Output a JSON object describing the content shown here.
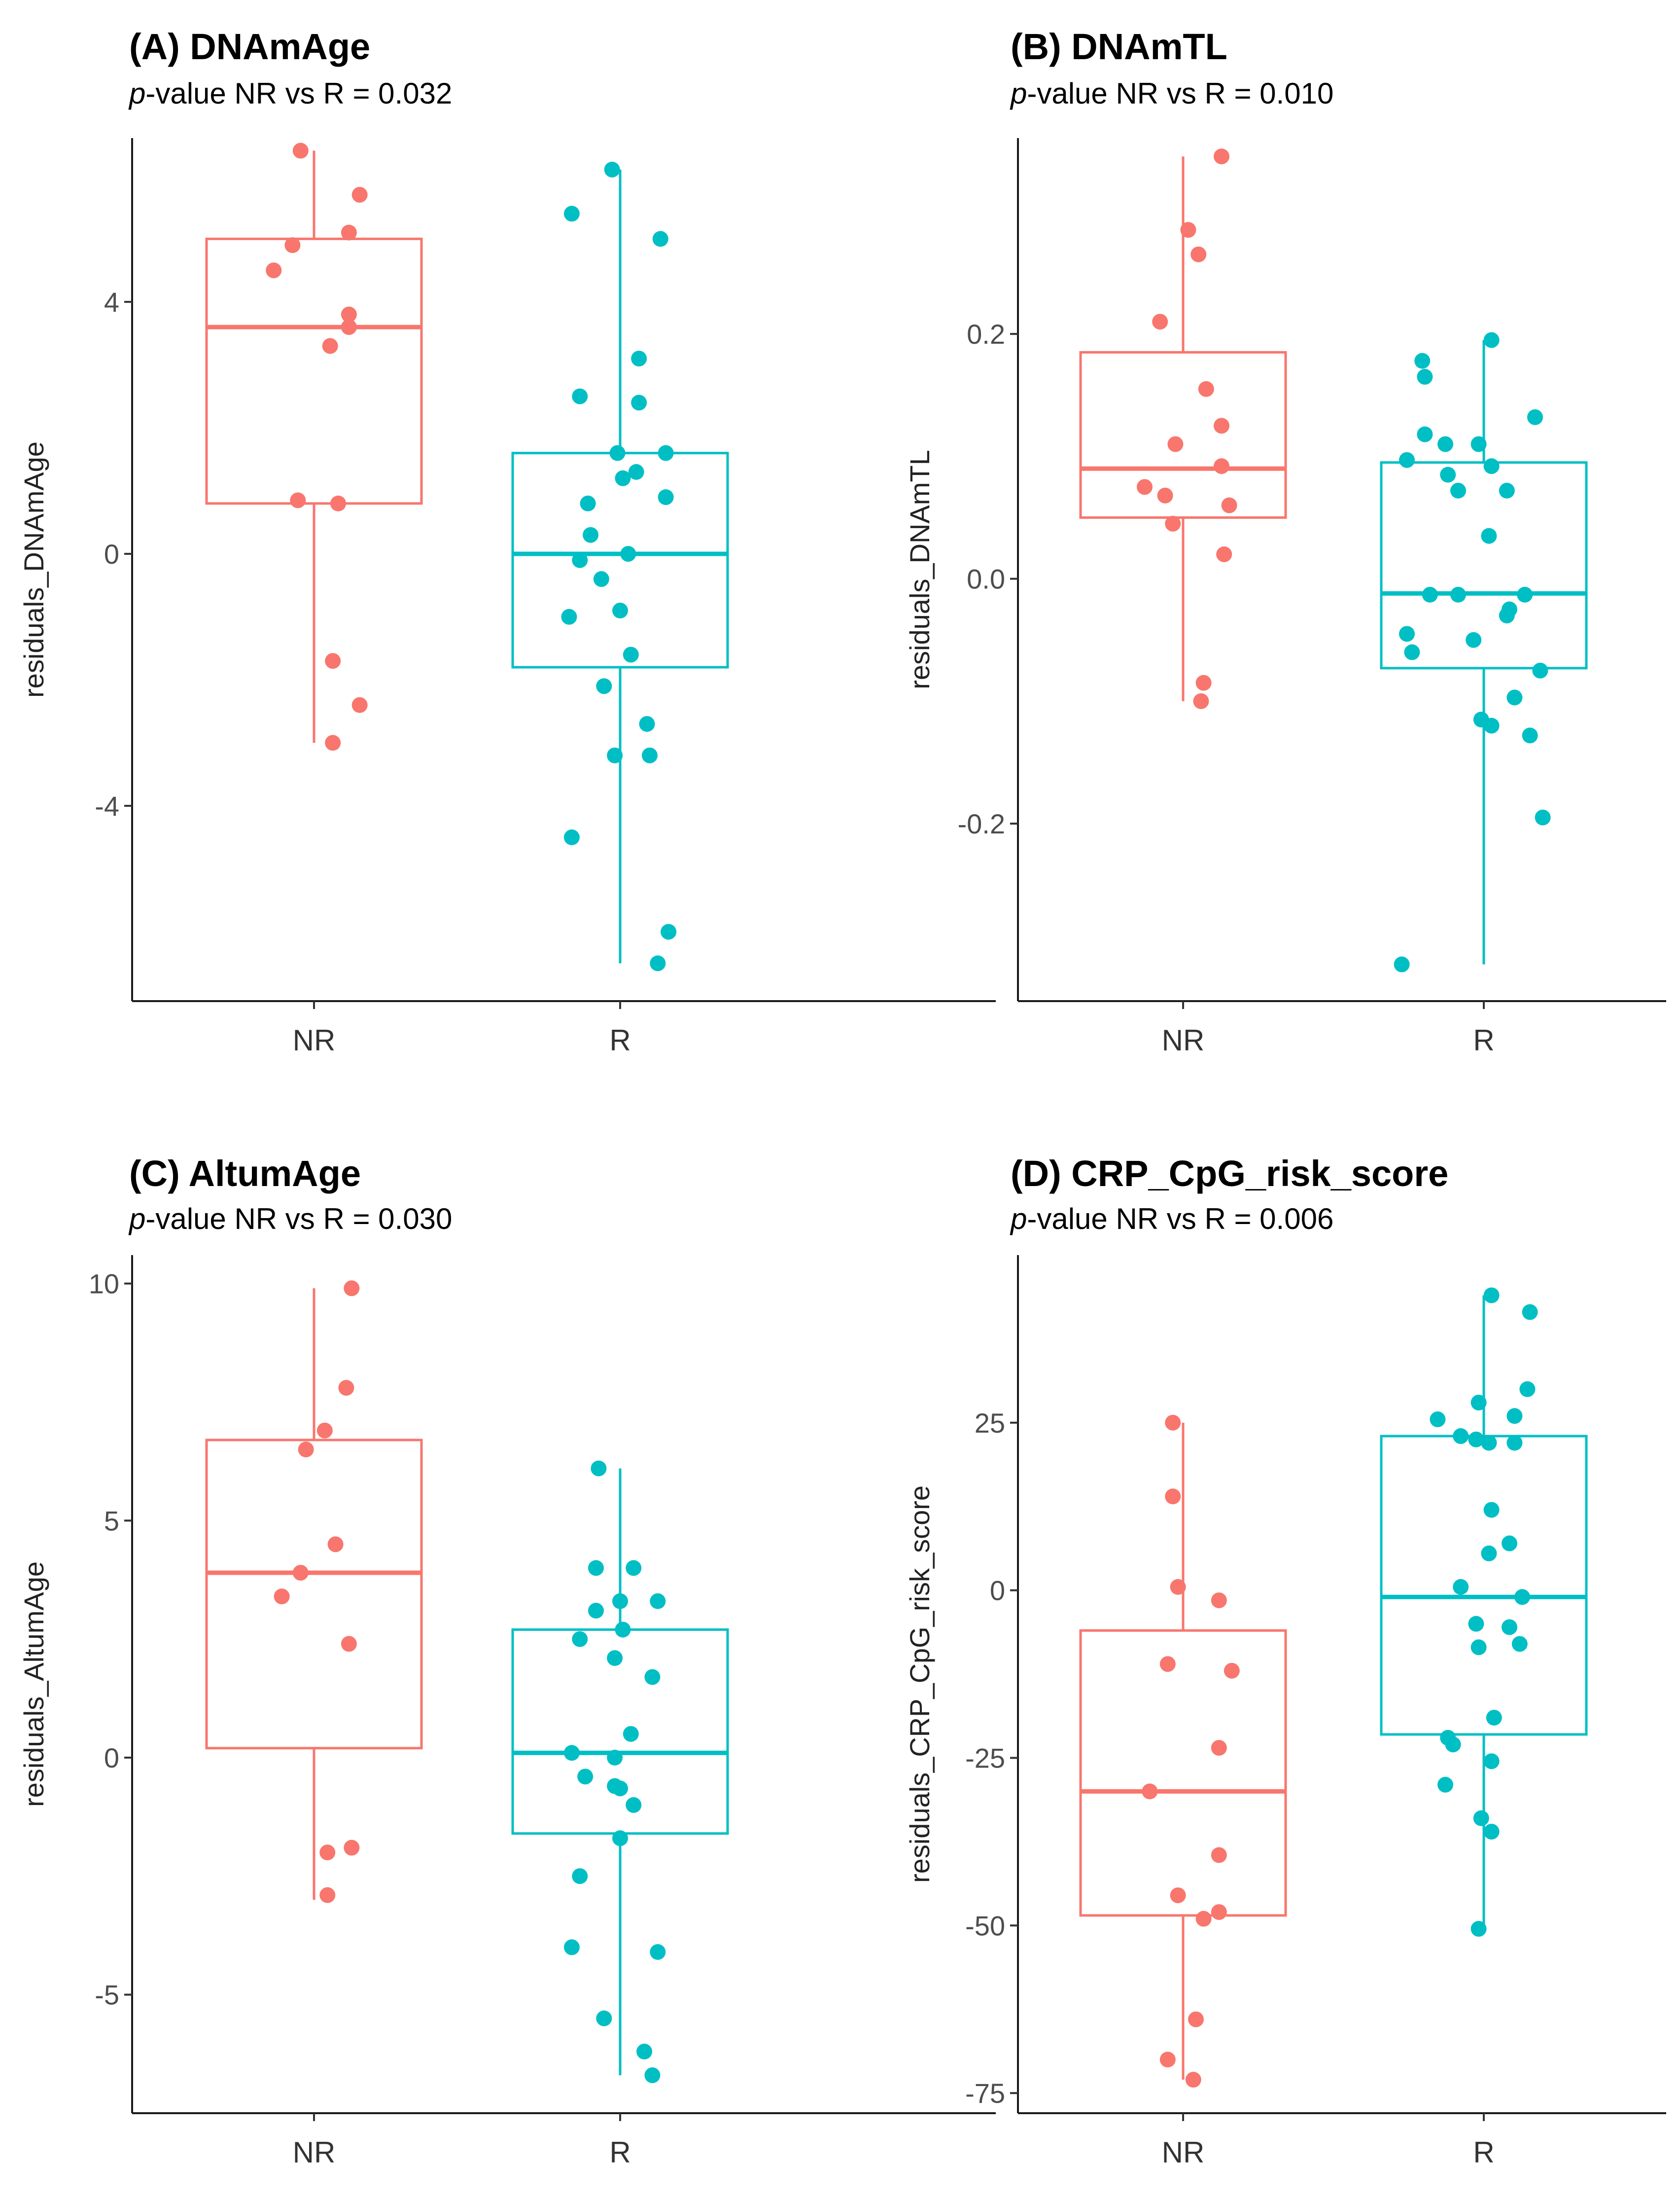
{
  "colors": {
    "NR": "#F8766D",
    "R": "#00BFC4"
  },
  "chart_data": [
    {
      "type": "box",
      "title": "(A) DNAmAge",
      "subtitle_italic": "p",
      "subtitle_rest": "-value NR vs R = 0.032",
      "ylabel": "residuals_DNAmAge",
      "categories": [
        "NR",
        "R"
      ],
      "ylim": [
        -7.1,
        6.6
      ],
      "yticks": [
        -4,
        0,
        4
      ],
      "ytick_labels": [
        "-4",
        "0",
        "4"
      ],
      "boxes": [
        {
          "group": "NR",
          "whisker_low": -3.0,
          "q1": 0.8,
          "median": 3.6,
          "q3": 5.0,
          "whisker_high": 6.4
        },
        {
          "group": "R",
          "whisker_low": -6.5,
          "q1": -1.8,
          "median": 0.0,
          "q3": 1.6,
          "whisker_high": 6.1
        }
      ],
      "points": [
        {
          "group": "NR",
          "jitter": -0.05,
          "y": 6.4
        },
        {
          "group": "NR",
          "jitter": 0.17,
          "y": 5.7
        },
        {
          "group": "NR",
          "jitter": 0.13,
          "y": 5.1
        },
        {
          "group": "NR",
          "jitter": -0.08,
          "y": 4.9
        },
        {
          "group": "NR",
          "jitter": -0.15,
          "y": 4.5
        },
        {
          "group": "NR",
          "jitter": 0.13,
          "y": 3.8
        },
        {
          "group": "NR",
          "jitter": 0.13,
          "y": 3.6
        },
        {
          "group": "NR",
          "jitter": 0.06,
          "y": 3.3
        },
        {
          "group": "NR",
          "jitter": -0.06,
          "y": 0.85
        },
        {
          "group": "NR",
          "jitter": 0.09,
          "y": 0.8
        },
        {
          "group": "NR",
          "jitter": 0.07,
          "y": -1.7
        },
        {
          "group": "NR",
          "jitter": 0.17,
          "y": -2.4
        },
        {
          "group": "NR",
          "jitter": 0.07,
          "y": -3.0
        },
        {
          "group": "R",
          "jitter": -0.03,
          "y": 6.1
        },
        {
          "group": "R",
          "jitter": -0.18,
          "y": 5.4
        },
        {
          "group": "R",
          "jitter": 0.15,
          "y": 5.0
        },
        {
          "group": "R",
          "jitter": 0.07,
          "y": 3.1
        },
        {
          "group": "R",
          "jitter": -0.15,
          "y": 2.5
        },
        {
          "group": "R",
          "jitter": 0.07,
          "y": 2.4
        },
        {
          "group": "R",
          "jitter": -0.01,
          "y": 1.6
        },
        {
          "group": "R",
          "jitter": 0.17,
          "y": 1.6
        },
        {
          "group": "R",
          "jitter": 0.06,
          "y": 1.3
        },
        {
          "group": "R",
          "jitter": 0.01,
          "y": 1.2
        },
        {
          "group": "R",
          "jitter": 0.17,
          "y": 0.9
        },
        {
          "group": "R",
          "jitter": -0.12,
          "y": 0.8
        },
        {
          "group": "R",
          "jitter": -0.11,
          "y": 0.3
        },
        {
          "group": "R",
          "jitter": -0.15,
          "y": -0.1
        },
        {
          "group": "R",
          "jitter": 0.03,
          "y": 0.0
        },
        {
          "group": "R",
          "jitter": -0.07,
          "y": -0.4
        },
        {
          "group": "R",
          "jitter": 0.0,
          "y": -0.9
        },
        {
          "group": "R",
          "jitter": -0.19,
          "y": -1.0
        },
        {
          "group": "R",
          "jitter": 0.04,
          "y": -1.6
        },
        {
          "group": "R",
          "jitter": -0.06,
          "y": -2.1
        },
        {
          "group": "R",
          "jitter": 0.1,
          "y": -2.7
        },
        {
          "group": "R",
          "jitter": -0.02,
          "y": -3.2
        },
        {
          "group": "R",
          "jitter": 0.11,
          "y": -3.2
        },
        {
          "group": "R",
          "jitter": -0.18,
          "y": -4.5
        },
        {
          "group": "R",
          "jitter": 0.18,
          "y": -6.0
        },
        {
          "group": "R",
          "jitter": 0.14,
          "y": -6.5
        }
      ]
    },
    {
      "type": "box",
      "title": "(B) DNAmTL",
      "subtitle_italic": "p",
      "subtitle_rest": "-value NR vs R = 0.010",
      "ylabel": "residuals_DNAmTL",
      "categories": [
        "NR",
        "R"
      ],
      "ylim": [
        -0.345,
        0.36
      ],
      "yticks": [
        -0.2,
        0.0,
        0.2
      ],
      "ytick_labels": [
        "-0.2",
        "0.0",
        "0.2"
      ],
      "boxes": [
        {
          "group": "NR",
          "whisker_low": -0.1,
          "q1": 0.05,
          "median": 0.09,
          "q3": 0.185,
          "whisker_high": 0.345
        },
        {
          "group": "R",
          "whisker_low": -0.315,
          "q1": -0.073,
          "median": -0.012,
          "q3": 0.095,
          "whisker_high": 0.195
        }
      ],
      "points": [
        {
          "group": "NR",
          "jitter": 0.15,
          "y": 0.345
        },
        {
          "group": "NR",
          "jitter": 0.02,
          "y": 0.285
        },
        {
          "group": "NR",
          "jitter": 0.06,
          "y": 0.265
        },
        {
          "group": "NR",
          "jitter": -0.09,
          "y": 0.21
        },
        {
          "group": "NR",
          "jitter": 0.09,
          "y": 0.155
        },
        {
          "group": "NR",
          "jitter": 0.15,
          "y": 0.125
        },
        {
          "group": "NR",
          "jitter": -0.03,
          "y": 0.11
        },
        {
          "group": "NR",
          "jitter": 0.15,
          "y": 0.092
        },
        {
          "group": "NR",
          "jitter": -0.15,
          "y": 0.075
        },
        {
          "group": "NR",
          "jitter": -0.07,
          "y": 0.068
        },
        {
          "group": "NR",
          "jitter": 0.18,
          "y": 0.06
        },
        {
          "group": "NR",
          "jitter": -0.04,
          "y": 0.045
        },
        {
          "group": "NR",
          "jitter": 0.16,
          "y": 0.02
        },
        {
          "group": "NR",
          "jitter": 0.08,
          "y": -0.085
        },
        {
          "group": "NR",
          "jitter": 0.07,
          "y": -0.1
        },
        {
          "group": "R",
          "jitter": 0.03,
          "y": 0.195
        },
        {
          "group": "R",
          "jitter": -0.24,
          "y": 0.178
        },
        {
          "group": "R",
          "jitter": -0.23,
          "y": 0.165
        },
        {
          "group": "R",
          "jitter": 0.2,
          "y": 0.132
        },
        {
          "group": "R",
          "jitter": -0.23,
          "y": 0.118
        },
        {
          "group": "R",
          "jitter": -0.15,
          "y": 0.11
        },
        {
          "group": "R",
          "jitter": -0.02,
          "y": 0.11
        },
        {
          "group": "R",
          "jitter": -0.3,
          "y": 0.097
        },
        {
          "group": "R",
          "jitter": 0.03,
          "y": 0.092
        },
        {
          "group": "R",
          "jitter": -0.14,
          "y": 0.085
        },
        {
          "group": "R",
          "jitter": -0.1,
          "y": 0.072
        },
        {
          "group": "R",
          "jitter": 0.09,
          "y": 0.072
        },
        {
          "group": "R",
          "jitter": 0.02,
          "y": 0.035
        },
        {
          "group": "R",
          "jitter": -0.21,
          "y": -0.013
        },
        {
          "group": "R",
          "jitter": -0.1,
          "y": -0.013
        },
        {
          "group": "R",
          "jitter": 0.16,
          "y": -0.013
        },
        {
          "group": "R",
          "jitter": 0.1,
          "y": -0.025
        },
        {
          "group": "R",
          "jitter": 0.09,
          "y": -0.03
        },
        {
          "group": "R",
          "jitter": -0.3,
          "y": -0.045
        },
        {
          "group": "R",
          "jitter": -0.04,
          "y": -0.05
        },
        {
          "group": "R",
          "jitter": -0.28,
          "y": -0.06
        },
        {
          "group": "R",
          "jitter": 0.22,
          "y": -0.075
        },
        {
          "group": "R",
          "jitter": 0.12,
          "y": -0.097
        },
        {
          "group": "R",
          "jitter": -0.01,
          "y": -0.115
        },
        {
          "group": "R",
          "jitter": 0.03,
          "y": -0.12
        },
        {
          "group": "R",
          "jitter": 0.18,
          "y": -0.128
        },
        {
          "group": "R",
          "jitter": 0.23,
          "y": -0.195
        },
        {
          "group": "R",
          "jitter": -0.32,
          "y": -0.315
        }
      ]
    },
    {
      "type": "box",
      "title": "(C) AltumAge",
      "subtitle_italic": "p",
      "subtitle_rest": "-value NR vs R = 0.030",
      "ylabel": "residuals_AltumAge",
      "categories": [
        "NR",
        "R"
      ],
      "ylim": [
        -7.5,
        10.6
      ],
      "yticks": [
        -5,
        0,
        5,
        10
      ],
      "ytick_labels": [
        "-5",
        "0",
        "5",
        "10"
      ],
      "boxes": [
        {
          "group": "NR",
          "whisker_low": -3.0,
          "q1": 0.2,
          "median": 3.9,
          "q3": 6.7,
          "whisker_high": 9.9
        },
        {
          "group": "R",
          "whisker_low": -6.7,
          "q1": -1.6,
          "median": 0.1,
          "q3": 2.7,
          "whisker_high": 6.1
        }
      ],
      "points": [
        {
          "group": "NR",
          "jitter": 0.14,
          "y": 9.9
        },
        {
          "group": "NR",
          "jitter": 0.12,
          "y": 7.8
        },
        {
          "group": "NR",
          "jitter": 0.04,
          "y": 6.9
        },
        {
          "group": "NR",
          "jitter": -0.03,
          "y": 6.5
        },
        {
          "group": "NR",
          "jitter": 0.08,
          "y": 4.5
        },
        {
          "group": "NR",
          "jitter": -0.05,
          "y": 3.9
        },
        {
          "group": "NR",
          "jitter": -0.12,
          "y": 3.4
        },
        {
          "group": "NR",
          "jitter": 0.13,
          "y": 2.4
        },
        {
          "group": "NR",
          "jitter": 0.05,
          "y": -2.0
        },
        {
          "group": "NR",
          "jitter": 0.14,
          "y": -1.9
        },
        {
          "group": "NR",
          "jitter": 0.05,
          "y": -2.9
        },
        {
          "group": "R",
          "jitter": -0.08,
          "y": 6.1
        },
        {
          "group": "R",
          "jitter": -0.09,
          "y": 4.0
        },
        {
          "group": "R",
          "jitter": 0.05,
          "y": 4.0
        },
        {
          "group": "R",
          "jitter": 0.0,
          "y": 3.3
        },
        {
          "group": "R",
          "jitter": 0.14,
          "y": 3.3
        },
        {
          "group": "R",
          "jitter": -0.09,
          "y": 3.1
        },
        {
          "group": "R",
          "jitter": 0.01,
          "y": 2.7
        },
        {
          "group": "R",
          "jitter": -0.15,
          "y": 2.5
        },
        {
          "group": "R",
          "jitter": -0.02,
          "y": 2.1
        },
        {
          "group": "R",
          "jitter": 0.12,
          "y": 1.7
        },
        {
          "group": "R",
          "jitter": 0.04,
          "y": 0.5
        },
        {
          "group": "R",
          "jitter": -0.18,
          "y": 0.1
        },
        {
          "group": "R",
          "jitter": -0.02,
          "y": 0.0
        },
        {
          "group": "R",
          "jitter": -0.13,
          "y": -0.4
        },
        {
          "group": "R",
          "jitter": -0.02,
          "y": -0.6
        },
        {
          "group": "R",
          "jitter": 0.0,
          "y": -0.65
        },
        {
          "group": "R",
          "jitter": 0.05,
          "y": -1.0
        },
        {
          "group": "R",
          "jitter": 0.0,
          "y": -1.7
        },
        {
          "group": "R",
          "jitter": -0.15,
          "y": -2.5
        },
        {
          "group": "R",
          "jitter": -0.18,
          "y": -4.0
        },
        {
          "group": "R",
          "jitter": 0.14,
          "y": -4.1
        },
        {
          "group": "R",
          "jitter": -0.06,
          "y": -5.5
        },
        {
          "group": "R",
          "jitter": 0.09,
          "y": -6.2
        },
        {
          "group": "R",
          "jitter": 0.12,
          "y": -6.7
        }
      ]
    },
    {
      "type": "box",
      "title": "(D) CRP_CpG_risk_score",
      "subtitle_italic": "p",
      "subtitle_rest": "-value NR vs R = 0.006",
      "ylabel": "residuals_CRP_CpG_risk_score",
      "categories": [
        "NR",
        "R"
      ],
      "ylim": [
        -78,
        50
      ],
      "yticks": [
        -75,
        -50,
        -25,
        0,
        25
      ],
      "ytick_labels": [
        "-75",
        "-50",
        "-25",
        "0",
        "25"
      ],
      "boxes": [
        {
          "group": "NR",
          "whisker_low": -73,
          "q1": -48.5,
          "median": -30,
          "q3": -6,
          "whisker_high": 25
        },
        {
          "group": "R",
          "whisker_low": -50.5,
          "q1": -21.5,
          "median": -1,
          "q3": 23,
          "whisker_high": 44
        }
      ],
      "points": [
        {
          "group": "NR",
          "jitter": -0.04,
          "y": 25
        },
        {
          "group": "NR",
          "jitter": -0.04,
          "y": 14
        },
        {
          "group": "NR",
          "jitter": -0.02,
          "y": 0.5
        },
        {
          "group": "NR",
          "jitter": 0.14,
          "y": -1.5
        },
        {
          "group": "NR",
          "jitter": -0.06,
          "y": -11
        },
        {
          "group": "NR",
          "jitter": 0.19,
          "y": -12
        },
        {
          "group": "NR",
          "jitter": 0.14,
          "y": -23.5
        },
        {
          "group": "NR",
          "jitter": -0.13,
          "y": -30
        },
        {
          "group": "NR",
          "jitter": 0.14,
          "y": -39.5
        },
        {
          "group": "NR",
          "jitter": -0.02,
          "y": -45.5
        },
        {
          "group": "NR",
          "jitter": 0.14,
          "y": -48
        },
        {
          "group": "NR",
          "jitter": 0.08,
          "y": -49
        },
        {
          "group": "NR",
          "jitter": 0.05,
          "y": -64
        },
        {
          "group": "NR",
          "jitter": -0.06,
          "y": -70
        },
        {
          "group": "NR",
          "jitter": 0.04,
          "y": -73
        },
        {
          "group": "R",
          "jitter": 0.03,
          "y": 44
        },
        {
          "group": "R",
          "jitter": 0.18,
          "y": 41.5
        },
        {
          "group": "R",
          "jitter": 0.17,
          "y": 30
        },
        {
          "group": "R",
          "jitter": -0.02,
          "y": 28
        },
        {
          "group": "R",
          "jitter": -0.18,
          "y": 25.5
        },
        {
          "group": "R",
          "jitter": 0.12,
          "y": 26
        },
        {
          "group": "R",
          "jitter": -0.09,
          "y": 23
        },
        {
          "group": "R",
          "jitter": -0.03,
          "y": 22.5
        },
        {
          "group": "R",
          "jitter": 0.02,
          "y": 22
        },
        {
          "group": "R",
          "jitter": 0.12,
          "y": 22
        },
        {
          "group": "R",
          "jitter": 0.03,
          "y": 12
        },
        {
          "group": "R",
          "jitter": 0.1,
          "y": 7
        },
        {
          "group": "R",
          "jitter": 0.02,
          "y": 5.5
        },
        {
          "group": "R",
          "jitter": 0.15,
          "y": -1
        },
        {
          "group": "R",
          "jitter": -0.09,
          "y": 0.5
        },
        {
          "group": "R",
          "jitter": -0.03,
          "y": -5
        },
        {
          "group": "R",
          "jitter": 0.1,
          "y": -5.5
        },
        {
          "group": "R",
          "jitter": 0.14,
          "y": -8
        },
        {
          "group": "R",
          "jitter": -0.02,
          "y": -8.5
        },
        {
          "group": "R",
          "jitter": 0.04,
          "y": -19
        },
        {
          "group": "R",
          "jitter": -0.14,
          "y": -22
        },
        {
          "group": "R",
          "jitter": -0.12,
          "y": -23
        },
        {
          "group": "R",
          "jitter": 0.03,
          "y": -25.5
        },
        {
          "group": "R",
          "jitter": -0.15,
          "y": -29
        },
        {
          "group": "R",
          "jitter": -0.01,
          "y": -34
        },
        {
          "group": "R",
          "jitter": 0.03,
          "y": -36
        },
        {
          "group": "R",
          "jitter": -0.02,
          "y": -50.5
        }
      ]
    }
  ]
}
